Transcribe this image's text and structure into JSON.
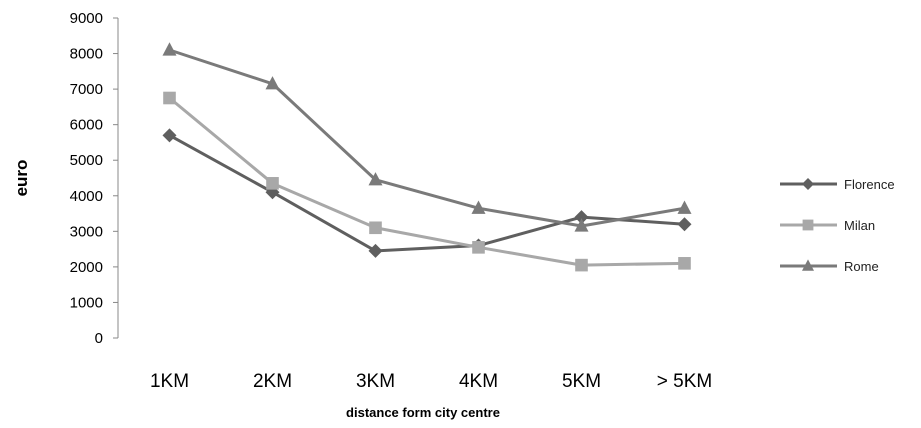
{
  "chart_data": {
    "type": "line",
    "xlabel": "distance form city centre",
    "ylabel": "euro",
    "categories": [
      "1KM",
      "2KM",
      "3KM",
      "4KM",
      "5KM",
      "> 5KM"
    ],
    "ylim": [
      0,
      9000
    ],
    "yticks": [
      "0",
      "1000",
      "2000",
      "3000",
      "4000",
      "5000",
      "6000",
      "7000",
      "8000",
      "9000"
    ],
    "grid": false,
    "legend_position": "right",
    "series": [
      {
        "name": "Florence",
        "marker": "diamond",
        "color": "#5f5f5f",
        "values": [
          5700,
          4100,
          2450,
          2600,
          3400,
          3200
        ]
      },
      {
        "name": "Milan",
        "marker": "square",
        "color": "#a8a8a8",
        "values": [
          6750,
          4350,
          3100,
          2550,
          2050,
          2100
        ]
      },
      {
        "name": "Rome",
        "marker": "triangle",
        "color": "#7a7a7a",
        "values": [
          8100,
          7150,
          4450,
          3650,
          3150,
          3650
        ]
      }
    ]
  }
}
